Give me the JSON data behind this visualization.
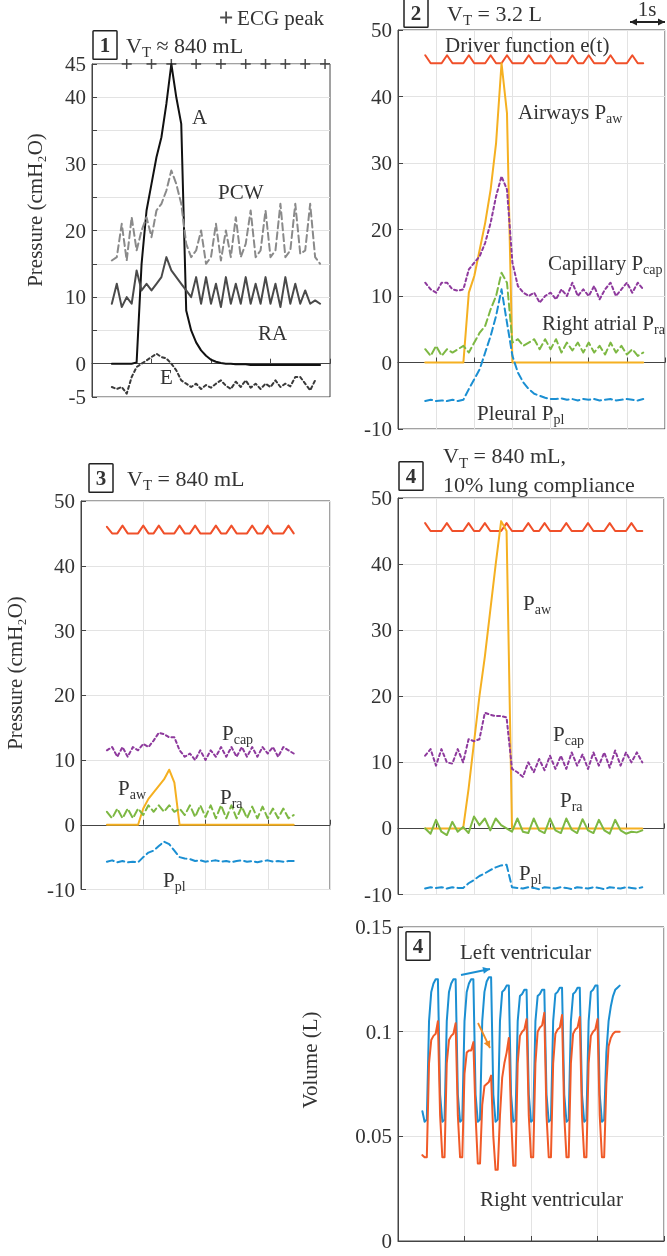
{
  "chart_data": [
    {
      "type": "line",
      "title": "V$_{T}$ ≈ 840 mL",
      "ylabel": "Pressure (cmH₂O)",
      "annotations": [
        "1"
      ],
      "categories": [
        null,
        null,
        null,
        null,
        null,
        null,
        null,
        null,
        null,
        null,
        null,
        null,
        null,
        null,
        null,
        null,
        null,
        null,
        null,
        null,
        null,
        null,
        null,
        null,
        null,
        null,
        null,
        null,
        null,
        null,
        null,
        null,
        null,
        null,
        null,
        null,
        null,
        null,
        null,
        null,
        null,
        null,
        null,
        null,
        null,
        null,
        null,
        null,
        null
      ],
      "series": [
        {
          "name": "A",
          "color": "#111111",
          "line_style": "solid",
          "values": [
            null,
            null,
            null,
            null,
            0,
            0,
            0,
            0,
            0,
            0.2,
            15,
            23,
            27,
            31,
            34,
            39,
            45,
            40,
            36,
            8,
            5,
            3.2,
            2,
            1.2,
            0.6,
            0.3,
            0.1,
            0,
            0,
            -0.1,
            -0.1,
            -0.1,
            -0.2,
            -0.2,
            -0.2,
            -0.2,
            -0.2,
            -0.2,
            -0.2,
            -0.2,
            -0.2,
            -0.2,
            -0.2,
            -0.2,
            -0.2,
            -0.2,
            -0.2,
            null,
            null
          ]
        },
        {
          "name": "PCW",
          "color": "#8a8a8a",
          "line_style": "dashed",
          "values": [
            null,
            null,
            null,
            null,
            15.5,
            16,
            21,
            15.5,
            22,
            17,
            20,
            22,
            19,
            23,
            24,
            26,
            29,
            27,
            24,
            18,
            16,
            17,
            20,
            15,
            16,
            21,
            15.5,
            20,
            16,
            22,
            16,
            18,
            23,
            16,
            17,
            23,
            16,
            17,
            24,
            16,
            17,
            24,
            16.5,
            17,
            24,
            16,
            15,
            null,
            null
          ]
        },
        {
          "name": "RA",
          "color": "#4a4a4a",
          "line_style": "solid",
          "values": [
            null,
            null,
            null,
            null,
            9,
            12,
            8.5,
            10,
            9,
            14,
            11,
            12,
            11,
            12,
            13,
            16,
            14,
            13,
            12,
            11,
            10,
            13,
            9,
            13,
            9,
            12,
            8.5,
            13,
            9,
            12,
            9,
            13,
            9,
            12,
            9,
            13,
            9,
            12,
            8.5,
            13,
            9,
            12,
            9,
            11,
            9,
            9.5,
            9,
            null,
            null
          ]
        },
        {
          "name": "E",
          "color": "#3a3a3a",
          "line_style": "dotted",
          "values": [
            null,
            null,
            null,
            null,
            -3.5,
            -3.8,
            -3.5,
            -4.5,
            -2,
            -0.5,
            0,
            0.5,
            1,
            1.5,
            1,
            0.8,
            0,
            -1,
            -2.5,
            -3,
            -3.5,
            -3,
            -3.8,
            -3.2,
            -3.6,
            -3,
            -2.5,
            -3.3,
            -3.8,
            -2.7,
            -3.5,
            -2.5,
            -3.6,
            -3,
            -3.8,
            -3,
            -3.5,
            -2.5,
            -3.5,
            -3,
            -3.4,
            -2,
            -2,
            -3,
            -4,
            -2.5,
            null,
            null,
            null
          ]
        },
        {
          "name": "ECG peak",
          "type": "scatter",
          "marker": "cross",
          "color": "#222222",
          "values": [
            null,
            null,
            null,
            null,
            null,
            null,
            null,
            45,
            null,
            null,
            null,
            null,
            45,
            null,
            null,
            null,
            45,
            null,
            null,
            null,
            null,
            45,
            null,
            null,
            null,
            null,
            45,
            null,
            null,
            null,
            null,
            45,
            null,
            null,
            null,
            45,
            null,
            null,
            null,
            45,
            null,
            null,
            null,
            45,
            null,
            null,
            null,
            45,
            null
          ]
        }
      ],
      "ylim": [
        -5,
        45
      ],
      "yticks": [
        -5,
        0,
        {
          "value": 5,
          "label": null
        },
        10,
        {
          "value": 15,
          "label": null
        },
        20,
        {
          "value": 25,
          "label": null
        },
        30,
        {
          "value": 35,
          "label": null
        },
        40,
        45
      ],
      "grid": "y",
      "tick_labels": "y",
      "legend": "top right"
    },
    {
      "type": "line",
      "title": "V$_{T}$ = 3.2 L",
      "annotations": [
        "2",
        "1s"
      ],
      "categories": [
        null,
        null,
        null,
        null,
        null,
        null,
        null,
        null,
        null,
        null,
        null,
        null,
        null,
        null,
        null,
        null,
        null,
        null,
        null,
        null,
        null,
        null,
        null,
        null,
        null,
        null,
        null,
        null,
        null,
        null,
        null,
        null,
        null,
        null,
        null,
        null,
        null,
        null,
        null,
        null,
        null,
        null,
        null,
        null,
        null,
        null,
        null,
        null,
        null,
        null
      ],
      "series": [
        {
          "name": "Driver function e(t)",
          "color": "#f0502a",
          "line_style": "solid",
          "values": [
            null,
            null,
            null,
            null,
            null,
            46.2,
            45,
            45,
            45,
            46.2,
            45,
            45,
            45,
            46.2,
            45,
            45,
            45,
            46.2,
            45,
            45,
            46.2,
            45,
            45,
            45,
            46.2,
            45,
            45,
            45,
            46.2,
            45,
            45,
            45,
            46.2,
            45,
            45,
            46.2,
            45,
            45,
            45,
            46.2,
            45,
            45,
            45,
            46.2,
            45,
            45,
            null,
            null,
            null,
            null
          ]
        },
        {
          "name": "Airways P$_{aw}$",
          "color": "#f5b021",
          "line_style": "solid",
          "values": [
            null,
            null,
            null,
            null,
            null,
            0,
            0,
            0,
            0,
            0,
            0,
            0,
            0,
            10.5,
            13,
            17,
            21,
            26,
            33,
            45,
            37.5,
            0,
            0,
            0,
            0,
            0,
            0,
            0,
            0,
            0,
            0,
            0,
            0,
            0,
            0,
            0,
            0,
            0,
            0,
            0,
            0,
            0,
            0,
            0,
            0,
            0,
            null,
            null,
            null,
            null
          ]
        },
        {
          "name": "Capillary P$_{cap}$",
          "color": "#8e3a9d",
          "line_style": "dotted",
          "values": [
            null,
            null,
            null,
            null,
            null,
            12,
            11,
            10.5,
            12,
            12,
            11,
            10.8,
            11,
            14,
            15,
            16,
            18,
            21,
            25,
            28,
            26,
            15,
            11.5,
            10.5,
            10,
            10.5,
            9,
            10,
            10.5,
            9.5,
            11,
            10,
            12,
            10,
            11,
            10,
            11.5,
            9.5,
            11,
            12,
            10,
            11,
            12,
            10.5,
            12,
            11,
            null,
            null,
            null,
            null
          ]
        },
        {
          "name": "Right atrial P$_{ra}$",
          "color": "#7db843",
          "line_style": "dashed",
          "values": [
            null,
            null,
            null,
            null,
            null,
            2,
            1,
            2.5,
            1,
            2,
            1.5,
            2,
            2.5,
            1.5,
            3,
            4.5,
            5.5,
            8,
            10,
            13.5,
            12,
            3,
            3.5,
            2.5,
            3,
            3.5,
            2,
            3.5,
            2,
            3.5,
            1.5,
            3,
            1.8,
            3,
            1.5,
            3,
            1.5,
            2.5,
            1.2,
            3,
            1.5,
            2.5,
            1.2,
            2,
            1,
            1.5,
            null,
            null,
            null,
            null
          ]
        },
        {
          "name": "Pleural P$_{pl}$",
          "color": "#1b8fd2",
          "line_style": "dashed",
          "values": [
            null,
            null,
            null,
            null,
            null,
            -5.8,
            -5.6,
            -5.8,
            -5.7,
            -5.8,
            -5.6,
            -5.8,
            -5.6,
            -4,
            -2.5,
            -1,
            1.5,
            4,
            7,
            11,
            6,
            1,
            -1.5,
            -3,
            -4,
            -4.7,
            -5,
            -5.3,
            -5.5,
            -5.5,
            -5.4,
            -5.6,
            -5.5,
            -5.7,
            -5.5,
            -5.6,
            -5.5,
            -5.7,
            -5.6,
            -5.5,
            -5.7,
            -5.6,
            -5.5,
            -5.6,
            -5.7,
            -5.5,
            null,
            null,
            null,
            null
          ]
        }
      ],
      "ylim": [
        -10,
        50
      ],
      "yticks": [
        -10,
        0,
        10,
        20,
        30,
        40,
        50
      ],
      "grid": true,
      "tick_labels": "y"
    },
    {
      "type": "line",
      "title": "V$_{T}$ = 840 mL",
      "ylabel": "Pressure (cmH₂O)",
      "annotations": [
        "3"
      ],
      "categories": [
        null,
        null,
        null,
        null,
        null,
        null,
        null,
        null,
        null,
        null,
        null,
        null,
        null,
        null,
        null,
        null,
        null,
        null,
        null,
        null,
        null,
        null,
        null,
        null,
        null,
        null,
        null,
        null,
        null,
        null,
        null,
        null,
        null,
        null,
        null,
        null,
        null,
        null,
        null,
        null,
        null,
        null,
        null,
        null,
        null,
        null,
        null,
        null,
        null
      ],
      "series": [
        {
          "color": "#f0502a",
          "line_style": "solid",
          "values": [
            null,
            null,
            null,
            null,
            null,
            46,
            45,
            45,
            46.2,
            45,
            45,
            45,
            46.2,
            45,
            45,
            46.2,
            45,
            45,
            45,
            46.2,
            45,
            45,
            46.2,
            45,
            45,
            45,
            46.2,
            45,
            45,
            46.2,
            45,
            45,
            45,
            46.2,
            45,
            45,
            46.2,
            45,
            45,
            45,
            46.2,
            45,
            null,
            null,
            null,
            null,
            null,
            null,
            null
          ]
        },
        {
          "name": "P$_{aw}$",
          "color": "#f5b021",
          "line_style": "solid",
          "values": [
            null,
            null,
            null,
            null,
            null,
            0,
            0,
            0,
            0,
            0,
            0,
            0,
            2.5,
            4,
            5,
            6,
            7,
            8.5,
            6.5,
            0,
            0,
            0,
            0,
            0,
            0,
            0,
            0,
            0,
            0,
            0,
            0,
            0,
            0,
            0,
            0,
            0,
            0,
            0,
            0,
            0,
            0,
            0,
            null,
            null,
            null,
            null,
            null,
            null,
            null
          ]
        },
        {
          "name": "P$_{cap}$",
          "color": "#8e3a9d",
          "line_style": "dotted",
          "values": [
            null,
            null,
            null,
            null,
            null,
            11.5,
            12,
            10.5,
            12,
            10.5,
            12,
            11.5,
            12.5,
            12,
            13,
            14.2,
            14,
            13.5,
            13.5,
            11.5,
            10.5,
            11,
            10,
            11.5,
            10,
            11.5,
            10.5,
            12,
            10.5,
            12,
            10.5,
            12,
            10.5,
            12,
            10.5,
            12,
            11,
            12,
            10.5,
            12,
            11.5,
            11,
            null,
            null,
            null,
            null,
            null,
            null,
            null
          ]
        },
        {
          "name": "P$_{ra}$",
          "color": "#7db843",
          "line_style": "dashed",
          "values": [
            null,
            null,
            null,
            null,
            null,
            2,
            1,
            2.5,
            1,
            2.5,
            1,
            2.5,
            1.5,
            3,
            2,
            3,
            2,
            3,
            2,
            2.5,
            1.5,
            3,
            1.2,
            3,
            1.2,
            3,
            1,
            3,
            1,
            3,
            1,
            2.8,
            1,
            2.8,
            1,
            2.8,
            1,
            2.5,
            1,
            2.5,
            1,
            1.5,
            null,
            null,
            null,
            null,
            null,
            null,
            null
          ]
        },
        {
          "name": "P$_{pl}$",
          "color": "#1b8fd2",
          "line_style": "dashed",
          "values": [
            null,
            null,
            null,
            null,
            null,
            -5.7,
            -5.5,
            -5.8,
            -5.6,
            -5.8,
            -5.7,
            -5.8,
            -5,
            -4.3,
            -4,
            -3.3,
            -2.6,
            -3,
            -4,
            -5,
            -5.2,
            -5.3,
            -5.6,
            -5.5,
            -5.7,
            -5.6,
            -5.5,
            -5.7,
            -5.6,
            -5.8,
            -5.6,
            -5.5,
            -5.7,
            -5.6,
            -5.8,
            -5.6,
            -5.5,
            -5.7,
            -5.6,
            -5.7,
            -5.6,
            -5.6,
            null,
            null,
            null,
            null,
            null,
            null,
            null
          ]
        }
      ],
      "ylim": [
        -10,
        50
      ],
      "yticks": [
        -10,
        0,
        10,
        20,
        30,
        40,
        50
      ],
      "grid": true,
      "tick_labels": "y"
    },
    {
      "type": "line",
      "title": "V$_{T}$ = 840 mL, 10% lung compliance",
      "annotations": [
        "4"
      ],
      "categories": [
        null,
        null,
        null,
        null,
        null,
        null,
        null,
        null,
        null,
        null,
        null,
        null,
        null,
        null,
        null,
        null,
        null,
        null,
        null,
        null,
        null,
        null,
        null,
        null,
        null,
        null,
        null,
        null,
        null,
        null,
        null,
        null,
        null,
        null,
        null,
        null,
        null,
        null,
        null,
        null,
        null,
        null,
        null,
        null,
        null,
        null,
        null,
        null,
        null,
        null
      ],
      "series": [
        {
          "color": "#f0502a",
          "line_style": "solid",
          "values": [
            null,
            null,
            null,
            null,
            null,
            46.2,
            45,
            45,
            45,
            46.2,
            45,
            45,
            45,
            46.2,
            45,
            45,
            46.2,
            45,
            45,
            45,
            46.2,
            45,
            45,
            45,
            46.2,
            45,
            45,
            46.2,
            45,
            45,
            45,
            46.2,
            45,
            45,
            45,
            46.2,
            45,
            45,
            45,
            46.2,
            45,
            45,
            45,
            46.2,
            45,
            45,
            null,
            null,
            null,
            null
          ]
        },
        {
          "name": "P$_{aw}$",
          "color": "#f5b021",
          "line_style": "solid",
          "values": [
            null,
            null,
            null,
            null,
            null,
            0,
            0,
            0,
            0,
            0,
            0,
            0,
            0,
            6,
            13,
            20,
            26,
            33,
            40,
            46.5,
            45,
            0,
            0,
            0,
            0,
            0,
            0,
            0,
            0,
            0,
            0,
            0,
            0,
            0,
            0,
            0,
            0,
            0,
            0,
            0,
            0,
            0,
            0,
            0,
            0,
            0,
            null,
            null,
            null,
            null
          ]
        },
        {
          "name": "P$_{cap}$",
          "color": "#8e3a9d",
          "line_style": "dotted",
          "values": [
            null,
            null,
            null,
            null,
            null,
            11,
            12,
            9.5,
            12,
            10,
            9.8,
            12,
            10,
            13.5,
            13.2,
            13.5,
            17.5,
            17.2,
            17,
            17,
            16.8,
            9,
            8.5,
            7.8,
            10,
            8.5,
            10.5,
            8.8,
            11,
            9,
            11,
            9,
            11.5,
            9.5,
            11.2,
            9,
            11.5,
            9.5,
            11.5,
            9.2,
            11.8,
            9.5,
            11.5,
            10,
            11.5,
            10,
            null,
            null,
            null,
            null
          ]
        },
        {
          "name": "P$_{ra}$",
          "color": "#7db843",
          "line_style": "solid",
          "values": [
            null,
            null,
            null,
            null,
            null,
            0,
            -0.8,
            1.3,
            -0.5,
            -1,
            1,
            -0.5,
            0.2,
            -0.7,
            1.8,
            0.5,
            1.5,
            -0.3,
            1.5,
            0.5,
            0,
            -0.5,
            1.5,
            -0.5,
            -0.7,
            1.5,
            -0.3,
            -0.7,
            1.5,
            -0.3,
            -0.7,
            1.5,
            -0.2,
            -0.7,
            1.4,
            -0.3,
            -0.7,
            1.3,
            -0.3,
            -0.8,
            1.3,
            -0.3,
            -0.8,
            -0.5,
            -0.6,
            -0.3,
            null,
            null,
            null,
            null
          ]
        },
        {
          "name": "P$_{pl}$",
          "color": "#1b8fd2",
          "line_style": "dashed",
          "values": [
            null,
            null,
            null,
            null,
            null,
            -9.1,
            -8.9,
            -9,
            -8.9,
            -9.1,
            -8.9,
            -9,
            -9,
            -8.3,
            -7.8,
            -7.2,
            -6.8,
            -6.3,
            -5.9,
            -5.6,
            -5.5,
            -8.9,
            -9,
            -9.1,
            -8.9,
            -9,
            -9.2,
            -8.9,
            -9,
            -9.1,
            -8.9,
            -9,
            -9.2,
            -8.9,
            -9,
            -9.1,
            -8.9,
            -9,
            -9.2,
            -8.9,
            -9,
            -9.1,
            -8.9,
            -9,
            -9.1,
            -8.9,
            null,
            null,
            null,
            null
          ]
        }
      ],
      "ylim": [
        -10,
        50
      ],
      "yticks": [
        -10,
        0,
        10,
        20,
        30,
        40,
        50
      ],
      "grid": true,
      "tick_labels": "y"
    },
    {
      "type": "line",
      "ylabel": "Volume (L)",
      "annotations": [
        "4"
      ],
      "categories": [
        null,
        null,
        null,
        null,
        null,
        null,
        null,
        null,
        null,
        null,
        null,
        null,
        null,
        null,
        null,
        null,
        null,
        null,
        null,
        null,
        null,
        null,
        null,
        null,
        null,
        null,
        null,
        null,
        null,
        null,
        null,
        null,
        null,
        null,
        null,
        null,
        null,
        null,
        null,
        null,
        null,
        null,
        null,
        null,
        null,
        null,
        null,
        null,
        null,
        null,
        null,
        null,
        null,
        null,
        null,
        null,
        null,
        null,
        null,
        null,
        null,
        null,
        null,
        null,
        null,
        null,
        null,
        null,
        null,
        null,
        null,
        null,
        null,
        null,
        null,
        null,
        null,
        null,
        null,
        null,
        null,
        null,
        null,
        null,
        null,
        null,
        null,
        null,
        null,
        null,
        null,
        null,
        null,
        null,
        null,
        null,
        null,
        null,
        null,
        null,
        null,
        null,
        null,
        null,
        null,
        null,
        null,
        null,
        null,
        null,
        null,
        null,
        null,
        null,
        null,
        null,
        null,
        null,
        null,
        null,
        null
      ],
      "series": [
        {
          "name": "Left ventricular",
          "color": "#1b8fd2",
          "line_style": "solid",
          "values": [
            null,
            null,
            null,
            null,
            null,
            null,
            null,
            null,
            null,
            null,
            null,
            0.062,
            0.057,
            0.058,
            0.105,
            0.119,
            0.123,
            0.125,
            0.125,
            0.07,
            0.057,
            0.058,
            0.105,
            0.119,
            0.123,
            0.125,
            0.125,
            0.07,
            0.057,
            0.058,
            0.105,
            0.119,
            0.123,
            0.125,
            0.125,
            0.07,
            0.057,
            0.058,
            0.105,
            0.119,
            0.124,
            0.126,
            0.126,
            0.07,
            0.057,
            0.058,
            0.105,
            0.119,
            0.12,
            0.122,
            0.122,
            0.07,
            0.057,
            0.058,
            0.105,
            0.117,
            0.118,
            0.12,
            0.12,
            0.07,
            0.057,
            0.058,
            0.105,
            0.117,
            0.118,
            0.12,
            0.12,
            0.07,
            0.057,
            0.058,
            0.105,
            0.118,
            0.119,
            0.121,
            0.121,
            0.07,
            0.057,
            0.058,
            0.105,
            0.118,
            0.119,
            0.121,
            0.121,
            0.07,
            0.057,
            0.058,
            0.105,
            0.119,
            0.12,
            0.122,
            0.122,
            0.07,
            0.057,
            0.058,
            0.09,
            0.105,
            0.112,
            0.117,
            0.12,
            0.121,
            0.122,
            null,
            null,
            null,
            null,
            null,
            null,
            null,
            null,
            null,
            null,
            null,
            null,
            null,
            null,
            null,
            null,
            null,
            null,
            null,
            null
          ]
        },
        {
          "name": "Right ventricular",
          "color": "#f05a28",
          "line_style": "solid",
          "values": [
            null,
            null,
            null,
            null,
            null,
            null,
            null,
            null,
            null,
            null,
            null,
            0.041,
            0.04,
            0.04,
            0.085,
            0.096,
            0.098,
            0.099,
            0.105,
            0.06,
            0.04,
            0.04,
            0.085,
            0.096,
            0.098,
            0.099,
            0.104,
            0.06,
            0.04,
            0.04,
            0.08,
            0.09,
            0.091,
            0.091,
            0.095,
            0.06,
            0.037,
            0.037,
            0.065,
            0.074,
            0.075,
            0.076,
            0.079,
            0.05,
            0.034,
            0.034,
            0.06,
            0.078,
            0.085,
            0.09,
            0.097,
            0.06,
            0.036,
            0.036,
            0.085,
            0.098,
            0.1,
            0.101,
            0.106,
            0.06,
            0.04,
            0.04,
            0.085,
            0.1,
            0.102,
            0.103,
            0.109,
            0.06,
            0.04,
            0.04,
            0.085,
            0.099,
            0.101,
            0.102,
            0.108,
            0.06,
            0.04,
            0.04,
            0.085,
            0.099,
            0.101,
            0.102,
            0.107,
            0.06,
            0.04,
            0.04,
            0.085,
            0.098,
            0.1,
            0.101,
            0.106,
            0.06,
            0.04,
            0.04,
            0.075,
            0.093,
            0.097,
            0.099,
            0.1,
            0.1,
            0.1,
            null,
            null,
            null,
            null,
            null,
            null,
            null,
            null,
            null,
            null,
            null,
            null,
            null,
            null,
            null,
            null,
            null,
            null,
            null,
            null
          ]
        }
      ],
      "ylim": [
        0,
        0.15
      ],
      "yticks": [
        0,
        0.05,
        0.1,
        0.15
      ],
      "grid": true,
      "tick_labels": "y"
    }
  ]
}
